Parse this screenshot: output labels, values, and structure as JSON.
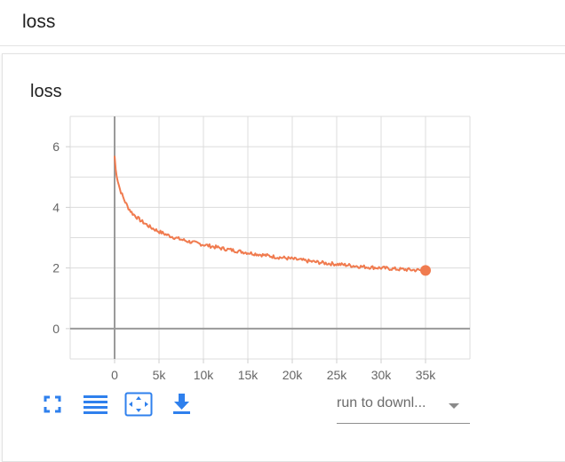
{
  "section": {
    "title": "loss"
  },
  "card": {
    "title": "loss"
  },
  "toolbar": {
    "icons": [
      "fit-domain-icon",
      "toggle-log-scale-icon",
      "expand-icon",
      "download-icon"
    ],
    "accent_color": "#2f80ed"
  },
  "run_select": {
    "selected": "run to downl..."
  },
  "chart_data": {
    "type": "line",
    "title": "loss",
    "xlabel": "",
    "ylabel": "",
    "xlim": [
      -5000,
      40000
    ],
    "ylim": [
      -1,
      7
    ],
    "x_ticks": [
      0,
      5000,
      10000,
      15000,
      20000,
      25000,
      30000,
      35000
    ],
    "x_tick_labels": [
      "0",
      "5k",
      "10k",
      "15k",
      "20k",
      "25k",
      "30k",
      "35k"
    ],
    "y_ticks": [
      0,
      2,
      4,
      6
    ],
    "y_tick_labels": [
      "0",
      "2",
      "4",
      "6"
    ],
    "grid": true,
    "line_color": "#f07b4f",
    "series": [
      {
        "x": [
          0,
          100,
          300,
          600,
          1000,
          1500,
          2000,
          3000,
          4000,
          5000,
          6000,
          7000,
          8000,
          9000,
          10000,
          12000,
          14000,
          16000,
          18000,
          20000,
          22000,
          24000,
          26000,
          28000,
          30000,
          32000,
          34000,
          35000
        ],
        "values": [
          5.7,
          5.3,
          4.95,
          4.6,
          4.3,
          4.0,
          3.8,
          3.55,
          3.35,
          3.2,
          3.08,
          2.98,
          2.9,
          2.83,
          2.77,
          2.65,
          2.55,
          2.46,
          2.37,
          2.3,
          2.22,
          2.15,
          2.1,
          2.04,
          2.0,
          1.96,
          1.93,
          1.92
        ]
      }
    ]
  }
}
